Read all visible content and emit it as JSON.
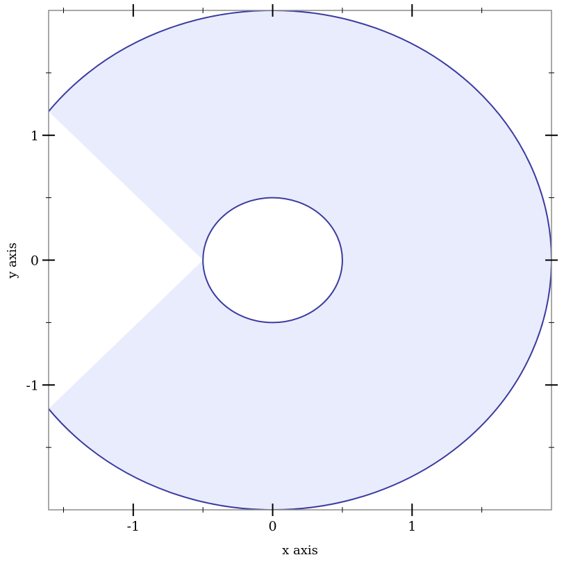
{
  "chart_data": {
    "type": "area",
    "subtype": "polar-interval",
    "title": "",
    "xlabel": "x axis",
    "ylabel": "y axis",
    "xlim": [
      -1.607,
      2
    ],
    "ylim": [
      -2,
      2
    ],
    "inner_radius": 0.5,
    "outer_radius": 2,
    "x_major_ticks": [
      -1,
      0,
      1
    ],
    "x_minor_ticks": [
      -1.5,
      -0.5,
      0.5,
      1.5
    ],
    "y_major_ticks": [
      -1,
      0,
      1
    ],
    "y_minor_ticks": [
      -1.5,
      -0.5,
      0.5,
      1.5
    ],
    "x_tick_labels": [
      "-1",
      "0",
      "1"
    ],
    "y_tick_labels": [
      "-1",
      "0",
      "1"
    ],
    "grid": false,
    "colors": {
      "fill": "#e9ecfc",
      "line": "#3b3ba0",
      "frame": "#8c8c8c"
    }
  }
}
